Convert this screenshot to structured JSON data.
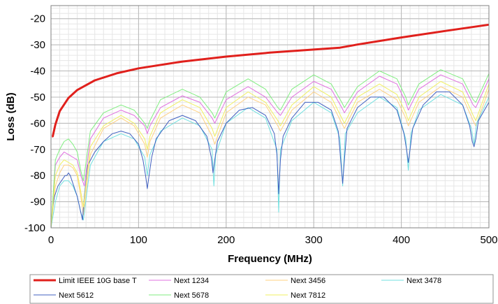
{
  "chart_data": {
    "type": "line",
    "title": "",
    "xlabel": "Frequency (MHz)",
    "ylabel": "Loss (dB)",
    "xlim": [
      0,
      500
    ],
    "ylim": [
      -100,
      -15
    ],
    "x_ticks": [
      0,
      100,
      200,
      300,
      400,
      500
    ],
    "y_ticks": [
      -100,
      -90,
      -80,
      -70,
      -60,
      -50,
      -40,
      -30,
      -20
    ],
    "grid": true,
    "legend_position": "bottom",
    "series": [
      {
        "name": "Limit IEEE 10G base T",
        "color": "#e0201c",
        "x": [
          1,
          2,
          5,
          10,
          20,
          30,
          50,
          75,
          100,
          150,
          200,
          250,
          300,
          330,
          350,
          400,
          450,
          500
        ],
        "values": [
          -65,
          -65,
          -60.5,
          -55.4,
          -50.3,
          -47.3,
          -43.6,
          -40.9,
          -39.0,
          -36.4,
          -34.5,
          -33.0,
          -31.8,
          -31.1,
          -29.9,
          -27.2,
          -24.7,
          -22.3
        ]
      },
      {
        "name": "Next 1234",
        "color": "#e070e0",
        "x": [
          0,
          5,
          10,
          15,
          20,
          25,
          30,
          34,
          38,
          45,
          60,
          80,
          95,
          107,
          110,
          113,
          125,
          150,
          170,
          184,
          187,
          200,
          225,
          245,
          259,
          262,
          275,
          300,
          320,
          332,
          335,
          350,
          375,
          395,
          405,
          408,
          420,
          445,
          470,
          482,
          485,
          500
        ],
        "values": [
          -100,
          -76,
          -73,
          -71,
          -72,
          -73,
          -74,
          -80,
          -84,
          -66,
          -58,
          -55,
          -57,
          -61,
          -64,
          -61,
          -54,
          -49.5,
          -52,
          -58,
          -60,
          -51,
          -46,
          -50,
          -56,
          -57,
          -50,
          -44,
          -47,
          -54,
          -56,
          -48,
          -42,
          -45,
          -52,
          -55,
          -47,
          -41.5,
          -45,
          -53,
          -54,
          -43
        ]
      },
      {
        "name": "Next 3456",
        "color": "#ffd080",
        "x": [
          0,
          5,
          10,
          15,
          20,
          25,
          30,
          34,
          37,
          45,
          60,
          80,
          95,
          107,
          110,
          113,
          125,
          150,
          170,
          184,
          187,
          200,
          225,
          245,
          259,
          262,
          275,
          300,
          320,
          332,
          335,
          350,
          375,
          395,
          405,
          408,
          420,
          445,
          470,
          482,
          485,
          500
        ],
        "values": [
          -100,
          -84,
          -79,
          -76,
          -76,
          -77,
          -80,
          -88,
          -95,
          -72,
          -62,
          -58,
          -61,
          -68,
          -73,
          -67,
          -58,
          -53,
          -56,
          -65,
          -68,
          -56,
          -50,
          -53,
          -61,
          -63,
          -55,
          -48,
          -52,
          -60,
          -62,
          -52,
          -47,
          -51,
          -58,
          -61,
          -52,
          -46,
          -50,
          -59,
          -61,
          -47
        ]
      },
      {
        "name": "Next 3478",
        "color": "#70e0e0",
        "x": [
          0,
          5,
          10,
          15,
          20,
          25,
          30,
          34,
          37,
          45,
          60,
          80,
          95,
          107,
          110,
          113,
          125,
          150,
          170,
          184,
          186,
          188,
          200,
          225,
          245,
          258,
          260,
          262,
          275,
          300,
          320,
          330,
          333,
          336,
          350,
          375,
          395,
          405,
          408,
          411,
          420,
          445,
          470,
          480,
          483,
          486,
          500
        ],
        "values": [
          -100,
          -90,
          -84,
          -82,
          -82,
          -84,
          -88,
          -94,
          -97,
          -76,
          -67,
          -64,
          -66,
          -73,
          -80,
          -72,
          -63,
          -58,
          -61,
          -70,
          -84,
          -72,
          -60,
          -54,
          -58,
          -70,
          -94,
          -70,
          -59,
          -52,
          -56,
          -66,
          -84,
          -64,
          -56,
          -50,
          -54,
          -66,
          -78,
          -64,
          -55,
          -49,
          -53,
          -62,
          -68,
          -60,
          -50
        ]
      },
      {
        "name": "Next 5612",
        "color": "#4060c0",
        "x": [
          0,
          2,
          4,
          6,
          8,
          10,
          12,
          14,
          16,
          18,
          20,
          22,
          24,
          26,
          28,
          30,
          32,
          34,
          36,
          38,
          42,
          50,
          60,
          70,
          80,
          90,
          100,
          105,
          108,
          110,
          112,
          115,
          120,
          135,
          150,
          165,
          178,
          183,
          185,
          187,
          190,
          200,
          215,
          230,
          245,
          255,
          258,
          260,
          262,
          265,
          275,
          290,
          305,
          320,
          328,
          331,
          333,
          335,
          338,
          350,
          365,
          380,
          395,
          403,
          406,
          408,
          410,
          413,
          425,
          440,
          455,
          470,
          478,
          481,
          483,
          485,
          488,
          500
        ],
        "values": [
          -100,
          -92,
          -88,
          -86,
          -84,
          -83,
          -82,
          -81,
          -80,
          -80,
          -79,
          -80,
          -82,
          -84,
          -86,
          -88,
          -91,
          -94,
          -97,
          -88,
          -76,
          -71,
          -67,
          -64,
          -63,
          -64,
          -68,
          -74,
          -80,
          -85,
          -80,
          -73,
          -66,
          -59,
          -57,
          -59,
          -65,
          -73,
          -79,
          -74,
          -67,
          -60,
          -55,
          -54,
          -57,
          -64,
          -72,
          -87,
          -74,
          -65,
          -58,
          -52,
          -52,
          -55,
          -63,
          -75,
          -83,
          -74,
          -62,
          -54,
          -50,
          -50,
          -55,
          -64,
          -70,
          -75,
          -70,
          -62,
          -53,
          -48,
          -48,
          -53,
          -61,
          -67,
          -69,
          -66,
          -59,
          -52
        ]
      },
      {
        "name": "Next 5678",
        "color": "#80ee80",
        "x": [
          0,
          5,
          10,
          15,
          20,
          25,
          30,
          34,
          37,
          45,
          60,
          80,
          95,
          107,
          110,
          113,
          125,
          150,
          170,
          184,
          187,
          200,
          225,
          245,
          259,
          262,
          275,
          300,
          320,
          332,
          335,
          350,
          375,
          395,
          405,
          408,
          420,
          445,
          470,
          482,
          485,
          500
        ],
        "values": [
          -100,
          -74,
          -70,
          -67,
          -66,
          -68,
          -71,
          -78,
          -82,
          -63,
          -56,
          -53,
          -55,
          -60,
          -62,
          -59,
          -51,
          -47,
          -50,
          -56,
          -58,
          -48,
          -43,
          -47,
          -54,
          -55,
          -47,
          -41.5,
          -45,
          -52,
          -54,
          -46,
          -40,
          -43,
          -50,
          -53,
          -45,
          -39.5,
          -43,
          -51,
          -52,
          -41
        ]
      },
      {
        "name": "Next 7812",
        "color": "#f0f060",
        "x": [
          0,
          5,
          10,
          15,
          20,
          25,
          30,
          34,
          37,
          45,
          60,
          80,
          95,
          107,
          110,
          113,
          125,
          150,
          170,
          184,
          187,
          200,
          225,
          245,
          259,
          262,
          275,
          300,
          320,
          332,
          335,
          350,
          375,
          395,
          405,
          408,
          420,
          445,
          470,
          482,
          485,
          500
        ],
        "values": [
          -100,
          -80,
          -76,
          -74,
          -75,
          -76,
          -79,
          -86,
          -92,
          -69,
          -61,
          -57,
          -60,
          -66,
          -70,
          -65,
          -56,
          -51,
          -54,
          -62,
          -65,
          -54,
          -48,
          -52,
          -59,
          -61,
          -53,
          -46,
          -50,
          -58,
          -60,
          -50,
          -45,
          -49,
          -56,
          -59,
          -50,
          -44,
          -48,
          -57,
          -59,
          -45
        ]
      }
    ],
    "legend": [
      {
        "label": "Limit IEEE 10G base T",
        "color": "#e0201c",
        "width": 3
      },
      {
        "label": "Next 1234",
        "color": "#e070e0",
        "width": 1
      },
      {
        "label": "Next 3456",
        "color": "#ffd080",
        "width": 1
      },
      {
        "label": "Next 3478",
        "color": "#70e0e0",
        "width": 1
      },
      {
        "label": "Next 5612",
        "color": "#4060c0",
        "width": 1
      },
      {
        "label": "Next 5678",
        "color": "#80ee80",
        "width": 1
      },
      {
        "label": "Next 7812",
        "color": "#f0f060",
        "width": 1
      }
    ]
  }
}
